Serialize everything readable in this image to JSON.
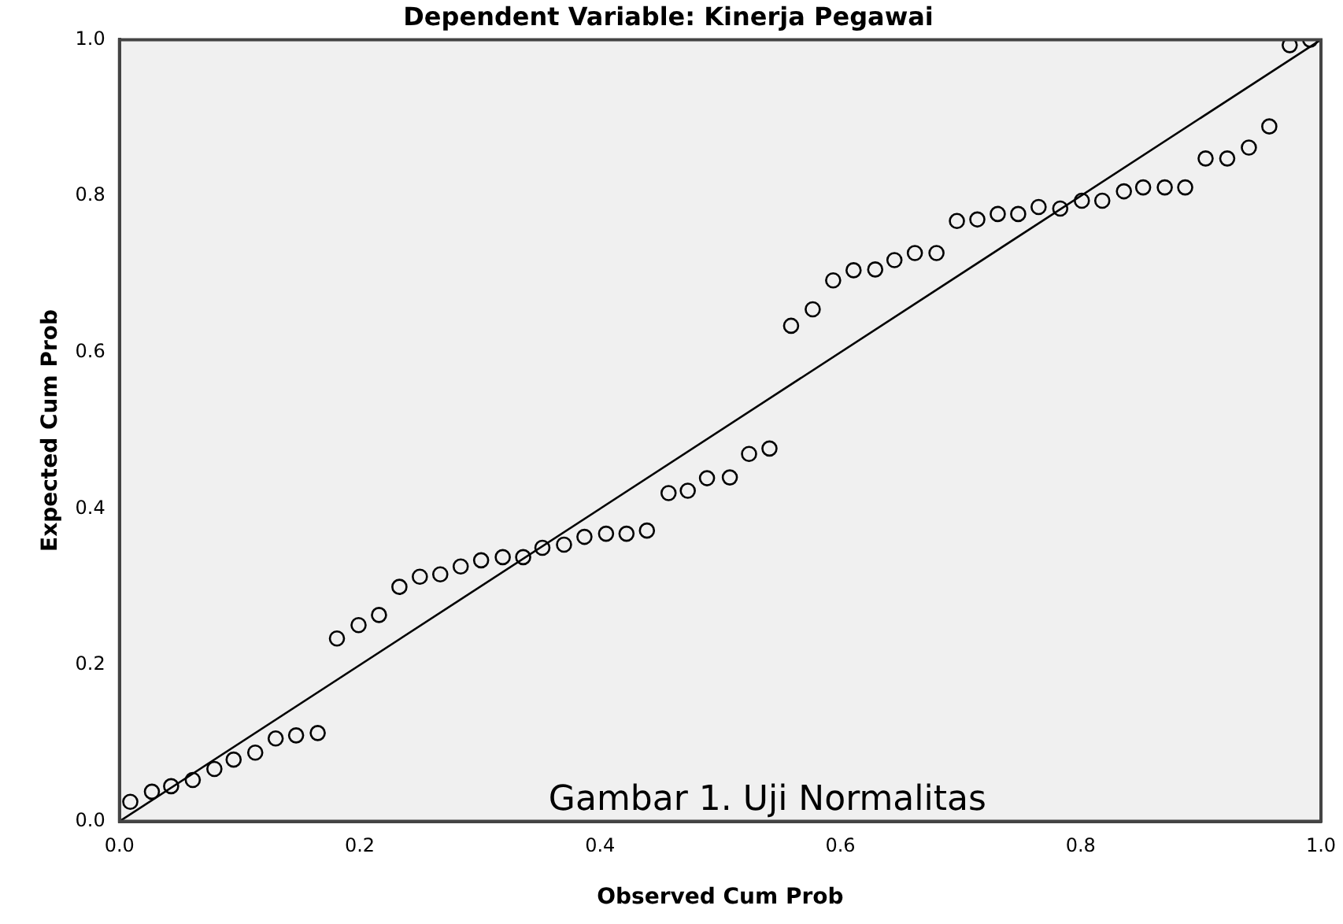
{
  "chart_data": {
    "type": "scatter",
    "title": "Dependent Variable: Kinerja Pegawai",
    "xlabel": "Observed Cum Prob",
    "ylabel": "Expected Cum Prob",
    "annotations": [
      "Gambar 1. Uji Normalitas"
    ],
    "grid": false,
    "legend": false,
    "xlim": [
      0,
      1
    ],
    "ylim": [
      0,
      1
    ],
    "xticks": [
      {
        "value": 0,
        "label": "0.0"
      },
      {
        "value": 0.2,
        "label": "0.2"
      },
      {
        "value": 0.4,
        "label": "0.4"
      },
      {
        "value": 0.6,
        "label": "0.6"
      },
      {
        "value": 0.8,
        "label": "0.8"
      },
      {
        "value": 1,
        "label": "1.0"
      }
    ],
    "yticks": [
      {
        "value": 0,
        "label": "0.0"
      },
      {
        "value": 0.2,
        "label": "0.2"
      },
      {
        "value": 0.4,
        "label": "0.4"
      },
      {
        "value": 0.6,
        "label": "0.6"
      },
      {
        "value": 0.8,
        "label": "0.8"
      },
      {
        "value": 1,
        "label": "1.0"
      }
    ],
    "series": [
      {
        "marker": "circle",
        "color": "#000000",
        "x": [
          0.009,
          0.027,
          0.043,
          0.061,
          0.079,
          0.095,
          0.113,
          0.13,
          0.147,
          0.165,
          0.181,
          0.199,
          0.216,
          0.233,
          0.25,
          0.267,
          0.284,
          0.301,
          0.319,
          0.336,
          0.352,
          0.37,
          0.387,
          0.405,
          0.422,
          0.439,
          0.457,
          0.473,
          0.489,
          0.508,
          0.524,
          0.541,
          0.559,
          0.577,
          0.594,
          0.611,
          0.629,
          0.645,
          0.662,
          0.68,
          0.697,
          0.714,
          0.731,
          0.748,
          0.765,
          0.783,
          0.801,
          0.818,
          0.836,
          0.852,
          0.87,
          0.887,
          0.904,
          0.922,
          0.94,
          0.957,
          0.974,
          0.991
        ],
        "values": [
          0.025,
          0.038,
          0.045,
          0.053,
          0.067,
          0.079,
          0.088,
          0.106,
          0.11,
          0.113,
          0.234,
          0.251,
          0.264,
          0.3,
          0.313,
          0.316,
          0.326,
          0.334,
          0.338,
          0.338,
          0.35,
          0.354,
          0.364,
          0.368,
          0.368,
          0.372,
          0.42,
          0.423,
          0.439,
          0.44,
          0.47,
          0.477,
          0.634,
          0.655,
          0.692,
          0.705,
          0.706,
          0.718,
          0.727,
          0.727,
          0.768,
          0.77,
          0.777,
          0.777,
          0.786,
          0.784,
          0.794,
          0.794,
          0.806,
          0.811,
          0.811,
          0.811,
          0.848,
          0.848,
          0.862,
          0.889,
          0.993,
          1.0
        ]
      },
      {
        "type": "line",
        "color": "#000000",
        "x": [
          0,
          1
        ],
        "values": [
          0,
          1
        ]
      }
    ]
  }
}
